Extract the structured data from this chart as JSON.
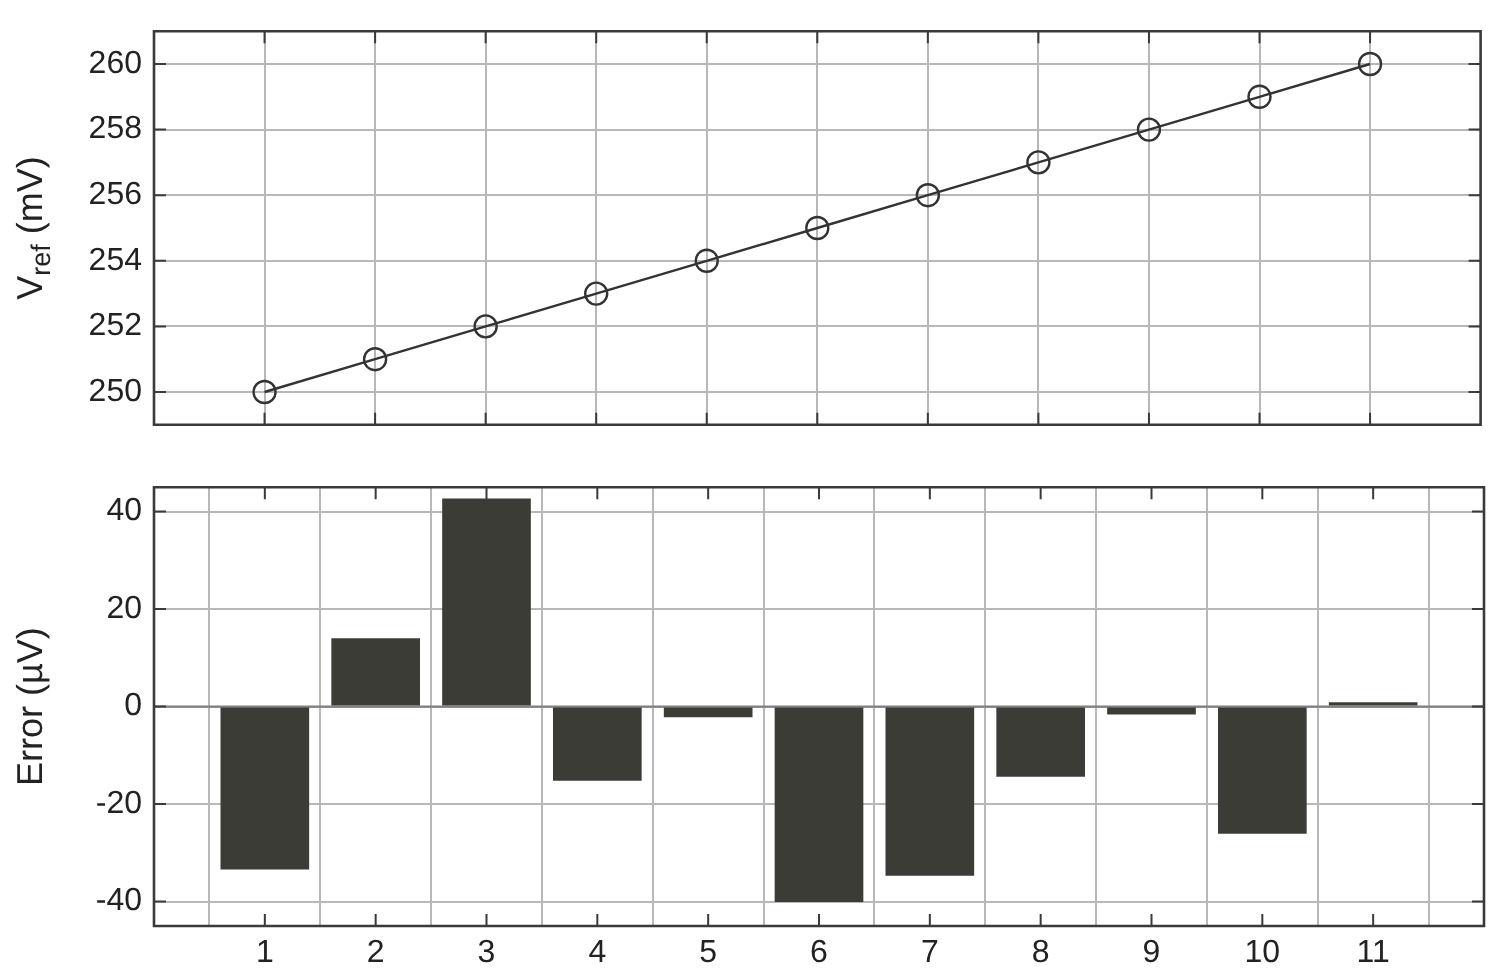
{
  "chart_data": [
    {
      "type": "line",
      "ylabel": "V$_{ref}$ (mV)",
      "x": [
        1,
        2,
        3,
        4,
        5,
        6,
        7,
        8,
        9,
        10,
        11
      ],
      "series": [
        {
          "color": "#333333",
          "values": [
            250,
            251,
            252,
            253,
            254,
            255,
            256,
            257,
            258,
            259,
            260
          ]
        }
      ],
      "marker": "circle",
      "line_style": "solid",
      "xlim": [
        0,
        12
      ],
      "xticks": [
        1,
        2,
        3,
        4,
        5,
        6,
        7,
        8,
        9,
        10,
        11
      ],
      "ylim": [
        249,
        261
      ],
      "yticks": [
        250,
        252,
        254,
        256,
        258,
        260
      ],
      "grid": true,
      "tick_labels": "y",
      "legend": false
    },
    {
      "type": "bar",
      "ylabel": "Error (µV)",
      "x": [
        1,
        2,
        3,
        4,
        5,
        6,
        7,
        8,
        9,
        10,
        11
      ],
      "series": [
        {
          "color": "#3c3c37",
          "values": [
            -33.4,
            14,
            42.7,
            -15.2,
            -2.2,
            -40.1,
            -34.7,
            -14.4,
            -1.6,
            -26.1,
            0.9
          ]
        }
      ],
      "xlim": [
        0,
        12
      ],
      "xticks": [
        1,
        2,
        3,
        4,
        5,
        6,
        7,
        8,
        9,
        10,
        11
      ],
      "ylim": [
        -45,
        45
      ],
      "yticks": [
        -40,
        -20,
        0,
        20,
        40
      ],
      "grid": true,
      "legend": false,
      "ref_lines": [
        {
          "axis": "y",
          "value": 0,
          "color": "#808080"
        }
      ]
    }
  ]
}
